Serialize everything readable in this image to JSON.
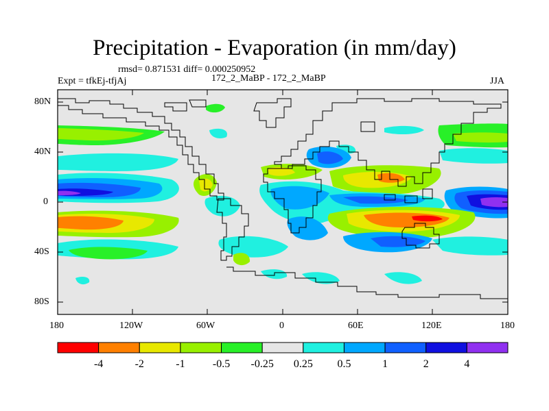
{
  "title": "Precipitation - Evaporation (in mm/day)",
  "stats": "rmsd= 0.871531  diff= 0.000250952",
  "expt": "Expt = tfkEj-tfjAj",
  "comparison": "172_2_MaBP - 172_2_MaBP",
  "season": "JJA",
  "lat_ticks": [
    "80N",
    "40N",
    "0",
    "40S",
    "80S"
  ],
  "lon_ticks": [
    "180",
    "120W",
    "60W",
    "0",
    "60E",
    "120E",
    "180"
  ],
  "colorbar": {
    "colors": [
      "#ff0000",
      "#ff8000",
      "#e8e800",
      "#98f000",
      "#28f028",
      "#e6e6e6",
      "#20f0e0",
      "#00a8ff",
      "#1060ff",
      "#1010e0",
      "#9030f0"
    ],
    "labels": [
      "-4",
      "-2",
      "-1",
      "-0.5",
      "-0.25",
      "0.25",
      "0.5",
      "1",
      "2",
      "4"
    ]
  }
}
